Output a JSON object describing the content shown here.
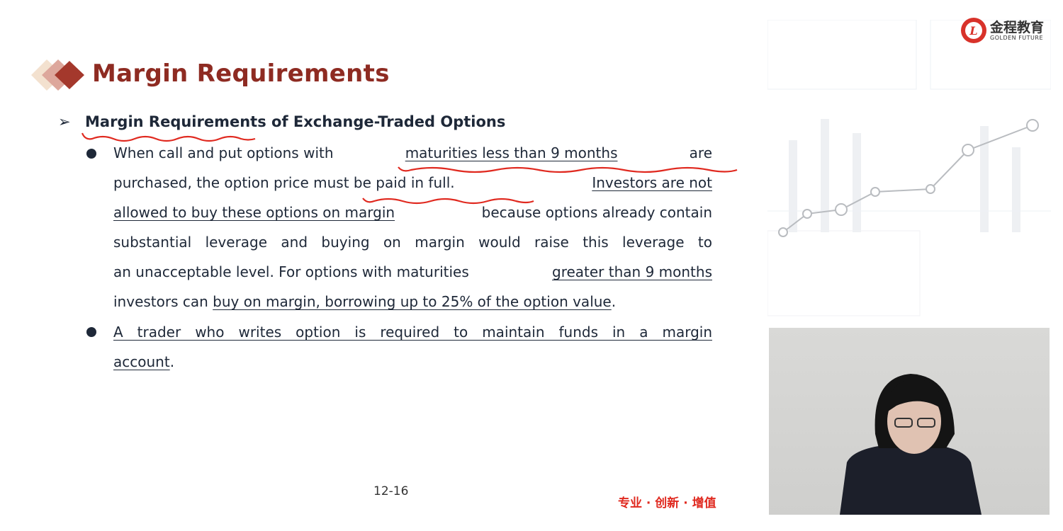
{
  "slide": {
    "title": "Margin Requirements",
    "subheading": "Margin Requirements of Exchange-Traded Options",
    "bullets": [
      {
        "lines": [
          [
            "When call and put options with ",
            "maturities less than 9 months",
            " are"
          ],
          [
            "purchased, the option price must be paid in full. ",
            "Investors are not"
          ],
          [
            "allowed to buy these options on margin",
            " because options already contain"
          ],
          [
            "substantial leverage and buying on margin would raise this leverage to"
          ],
          [
            "an unacceptable level. For options with maturities ",
            "greater than 9 months"
          ],
          [
            "investors can ",
            "buy on margin, borrowing up to 25% of the option value",
            "."
          ]
        ]
      },
      {
        "lines": [
          [
            "A trader who writes option is required to maintain funds in a margin"
          ],
          [
            "account",
            "."
          ]
        ]
      }
    ],
    "page_number": "12-16",
    "slogan": "专业 · 创新 · 增值"
  },
  "logo": {
    "cn": "金程教育",
    "en": "GOLDEN FUTURE"
  },
  "colors": {
    "title": "#8e2b22",
    "annotation": "#e0291f",
    "text": "#1e2838"
  },
  "video": {
    "description_icon": "presenter-webcam"
  }
}
